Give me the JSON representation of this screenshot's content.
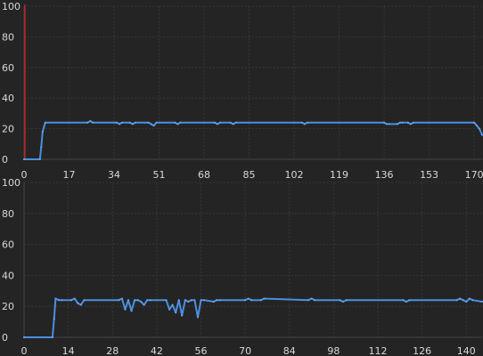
{
  "chart_data": [
    {
      "type": "line",
      "title": "",
      "xlabel": "",
      "ylabel": "",
      "xlim": [
        0,
        173
      ],
      "ylim": [
        0,
        100
      ],
      "x_ticks": [
        0,
        17,
        34,
        51,
        68,
        85,
        102,
        119,
        136,
        153,
        170
      ],
      "y_ticks": [
        0,
        20,
        40,
        60,
        80,
        100
      ],
      "grid": true,
      "legend": "none",
      "colors": {
        "series": "#4a8fe0",
        "marker": "#e02020",
        "background": "#242424"
      },
      "cursor_x": 0,
      "series": [
        {
          "x": [
            0,
            6,
            6.5,
            7,
            8,
            24,
            25,
            26,
            35,
            36,
            37,
            40,
            41,
            42,
            47,
            48,
            49,
            50,
            57,
            58,
            59,
            72,
            73,
            74,
            78,
            79,
            80,
            105,
            106,
            107,
            136,
            137,
            138,
            141,
            142,
            143,
            145,
            146,
            147,
            170,
            171,
            172,
            173
          ],
          "y": [
            0,
            0,
            8,
            18,
            24,
            24,
            25,
            24,
            24,
            23,
            24,
            24,
            23,
            24,
            24,
            23,
            22,
            24,
            24,
            23,
            24,
            24,
            23,
            24,
            24,
            23,
            24,
            24,
            23,
            24,
            24,
            23,
            23,
            23,
            24,
            24,
            24,
            23,
            24,
            24,
            22,
            20,
            16
          ]
        }
      ]
    },
    {
      "type": "line",
      "title": "",
      "xlabel": "",
      "ylabel": "",
      "xlim": [
        0,
        145
      ],
      "ylim": [
        0,
        100
      ],
      "x_ticks": [
        0,
        14,
        28,
        42,
        56,
        70,
        84,
        98,
        112,
        126,
        140
      ],
      "y_ticks": [
        0,
        20,
        40,
        60,
        80,
        100
      ],
      "grid": true,
      "legend": "none",
      "colors": {
        "series": "#4a8fe0"
      },
      "series": [
        {
          "x": [
            0,
            9,
            9.5,
            10,
            11,
            12,
            15,
            16,
            17,
            18,
            19,
            30,
            31,
            32,
            33,
            34,
            35,
            36,
            37,
            38,
            39,
            40,
            45,
            46,
            47,
            48,
            49,
            50,
            51,
            52,
            53,
            54,
            55,
            56,
            57,
            60,
            61,
            62,
            70,
            71,
            72,
            75,
            76,
            90,
            91,
            92,
            100,
            101,
            102,
            120,
            121,
            122,
            137,
            138,
            139,
            140,
            141,
            142,
            145
          ],
          "y": [
            0,
            0,
            12,
            25,
            24,
            24,
            24,
            25,
            22,
            21,
            24,
            24,
            25,
            18,
            24,
            17,
            24,
            24,
            23,
            21,
            24,
            24,
            24,
            18,
            21,
            16,
            24,
            14,
            24,
            23,
            24,
            24,
            13,
            24,
            24,
            23,
            24,
            24,
            24,
            25,
            24,
            24,
            25,
            24,
            25,
            24,
            24,
            23,
            24,
            24,
            23,
            24,
            24,
            25,
            24,
            23,
            25,
            24,
            23
          ]
        }
      ]
    }
  ]
}
